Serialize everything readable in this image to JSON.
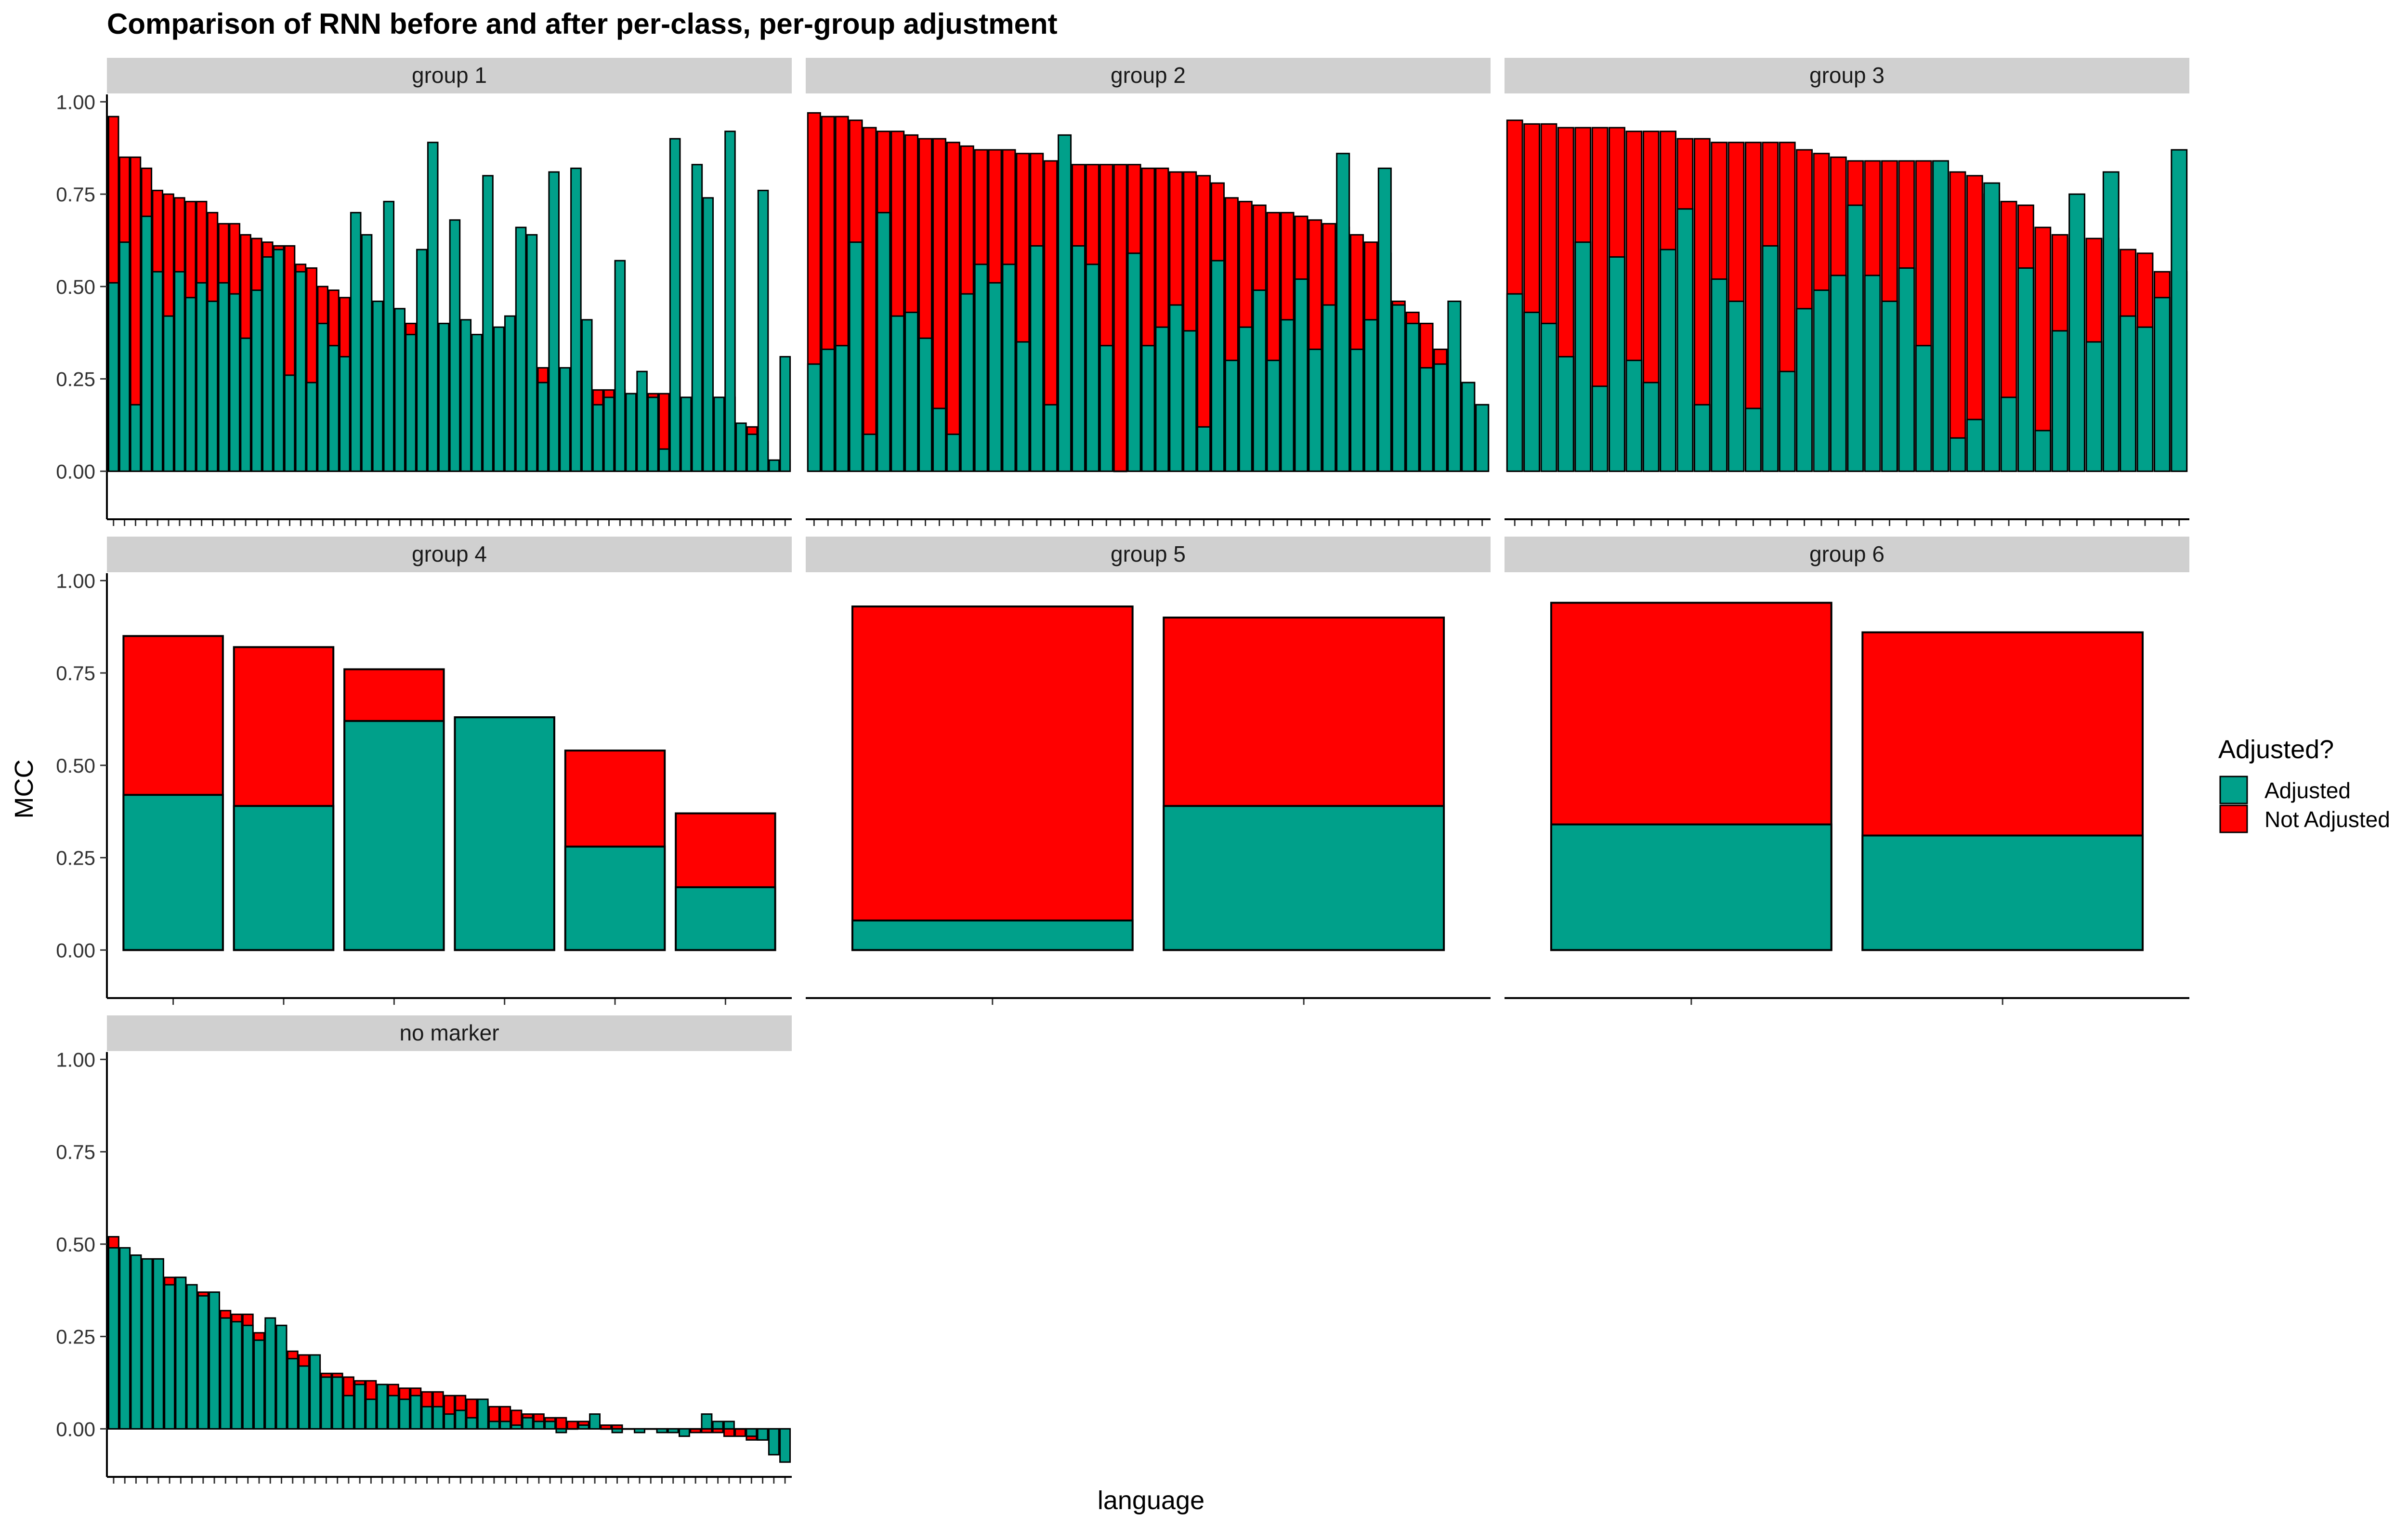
{
  "chart_data": {
    "type": "bar",
    "title": "Comparison of RNN before and after per-class, per-group adjustment",
    "xlabel": "language",
    "ylabel": "MCC",
    "ylim": [
      -0.13,
      1.02
    ],
    "yticks": [
      0,
      0.25,
      0.5,
      0.75,
      1
    ],
    "ytick_labels": [
      "0.00",
      "0.25",
      "0.50",
      "0.75",
      "1.00"
    ],
    "grid": false,
    "legend": {
      "title": "Adjusted?",
      "position": "right",
      "entries": [
        {
          "label": "Adjusted",
          "color": "#00A08A"
        },
        {
          "label": "Not Adjusted",
          "color": "#FF0000"
        }
      ]
    },
    "series_colors": {
      "adjusted": "#00A08A",
      "not_adjusted": "#FF0000"
    },
    "panels": [
      {
        "name": "group 1",
        "adjusted": [
          0.51,
          0.62,
          0.18,
          0.69,
          0.54,
          0.42,
          0.54,
          0.47,
          0.51,
          0.46,
          0.51,
          0.48,
          0.36,
          0.49,
          0.58,
          0.6,
          0.26,
          0.54,
          0.24,
          0.4,
          0.34,
          0.31,
          0.7,
          0.64,
          0.46,
          0.73,
          0.44,
          0.37,
          0.6,
          0.89,
          0.4,
          0.68,
          0.41,
          0.37,
          0.8,
          0.39,
          0.42,
          0.66,
          0.64,
          0.24,
          0.81,
          0.28,
          0.82,
          0.41,
          0.18,
          0.2,
          0.57,
          0.21,
          0.27,
          0.2,
          0.06,
          0.9,
          0.2,
          0.83,
          0.74,
          0.2,
          0.92,
          0.13,
          0.1,
          0.76,
          0.03,
          0.31
        ],
        "not_adjusted": [
          0.96,
          0.85,
          0.85,
          0.82,
          0.76,
          0.75,
          0.74,
          0.73,
          0.73,
          0.7,
          0.67,
          0.67,
          0.64,
          0.63,
          0.62,
          0.61,
          0.61,
          0.56,
          0.55,
          0.5,
          0.49,
          0.47,
          0.46,
          0.45,
          0.45,
          0.44,
          0.44,
          0.4,
          0.37,
          0.35,
          0.34,
          0.33,
          0.31,
          0.3,
          0.29,
          0.29,
          0.28,
          0.28,
          0.27,
          0.28,
          0.27,
          0.25,
          0.24,
          0.23,
          0.22,
          0.22,
          0.22,
          0.21,
          0.21,
          0.21,
          0.21,
          0.21,
          0.2,
          0.2,
          0.2,
          0.2,
          0.2,
          0.12,
          0.12,
          0.08,
          0.03,
          0.03
        ]
      },
      {
        "name": "group 2",
        "adjusted": [
          0.29,
          0.33,
          0.34,
          0.62,
          0.1,
          0.7,
          0.42,
          0.43,
          0.36,
          0.17,
          0.1,
          0.48,
          0.56,
          0.51,
          0.56,
          0.35,
          0.61,
          0.18,
          0.91,
          0.61,
          0.56,
          0.34,
          0.0,
          0.59,
          0.34,
          0.39,
          0.45,
          0.38,
          0.12,
          0.57,
          0.3,
          0.39,
          0.49,
          0.3,
          0.41,
          0.52,
          0.33,
          0.45,
          0.86,
          0.33,
          0.41,
          0.82,
          0.45,
          0.4,
          0.28,
          0.29,
          0.46,
          0.24,
          0.18
        ],
        "not_adjusted": [
          0.97,
          0.96,
          0.96,
          0.95,
          0.93,
          0.92,
          0.92,
          0.91,
          0.9,
          0.9,
          0.89,
          0.88,
          0.87,
          0.87,
          0.87,
          0.86,
          0.86,
          0.84,
          0.84,
          0.83,
          0.83,
          0.83,
          0.83,
          0.83,
          0.82,
          0.82,
          0.81,
          0.81,
          0.8,
          0.78,
          0.74,
          0.73,
          0.72,
          0.7,
          0.7,
          0.69,
          0.68,
          0.67,
          0.66,
          0.64,
          0.62,
          0.59,
          0.46,
          0.43,
          0.4,
          0.33,
          0.3,
          0.24,
          0.18
        ]
      },
      {
        "name": "group 3",
        "adjusted": [
          0.48,
          0.43,
          0.4,
          0.31,
          0.62,
          0.23,
          0.58,
          0.3,
          0.24,
          0.6,
          0.71,
          0.18,
          0.52,
          0.46,
          0.17,
          0.61,
          0.27,
          0.44,
          0.49,
          0.53,
          0.72,
          0.53,
          0.46,
          0.55,
          0.34,
          0.84,
          0.09,
          0.14,
          0.78,
          0.2,
          0.55,
          0.11,
          0.38,
          0.75,
          0.35,
          0.81,
          0.42,
          0.39,
          0.47,
          0.87
        ],
        "not_adjusted": [
          0.95,
          0.94,
          0.94,
          0.93,
          0.93,
          0.93,
          0.93,
          0.92,
          0.92,
          0.92,
          0.9,
          0.9,
          0.89,
          0.89,
          0.89,
          0.89,
          0.89,
          0.87,
          0.86,
          0.85,
          0.84,
          0.84,
          0.84,
          0.84,
          0.84,
          0.84,
          0.81,
          0.8,
          0.75,
          0.73,
          0.72,
          0.66,
          0.64,
          0.63,
          0.63,
          0.63,
          0.6,
          0.59,
          0.54,
          0.54
        ]
      },
      {
        "name": "group 4",
        "adjusted": [
          0.42,
          0.39,
          0.62,
          0.63,
          0.28,
          0.17
        ],
        "not_adjusted": [
          0.85,
          0.82,
          0.76,
          0.63,
          0.54,
          0.37
        ]
      },
      {
        "name": "group 5",
        "adjusted": [
          0.08,
          0.39
        ],
        "not_adjusted": [
          0.93,
          0.9
        ]
      },
      {
        "name": "group 6",
        "adjusted": [
          0.34,
          0.31
        ],
        "not_adjusted": [
          0.94,
          0.86
        ]
      },
      {
        "name": "no marker",
        "adjusted": [
          0.49,
          0.49,
          0.47,
          0.46,
          0.46,
          0.39,
          0.41,
          0.39,
          0.36,
          0.37,
          0.3,
          0.29,
          0.28,
          0.24,
          0.3,
          0.28,
          0.19,
          0.17,
          0.2,
          0.14,
          0.14,
          0.09,
          0.12,
          0.08,
          0.12,
          0.09,
          0.08,
          0.09,
          0.06,
          0.06,
          0.04,
          0.05,
          0.03,
          0.08,
          0.02,
          0.02,
          0.01,
          0.03,
          0.02,
          0.02,
          -0.01,
          0.0,
          0.01,
          0.04,
          0.0,
          -0.01,
          0.0,
          -0.01,
          0.0,
          -0.01,
          -0.01,
          -0.02,
          0.0,
          0.04,
          0.02,
          0.02,
          0.0,
          -0.02,
          -0.03,
          -0.07,
          -0.09
        ],
        "not_adjusted": [
          0.52,
          0.49,
          0.47,
          0.46,
          0.46,
          0.41,
          0.41,
          0.38,
          0.37,
          0.37,
          0.32,
          0.31,
          0.31,
          0.26,
          0.28,
          0.27,
          0.21,
          0.2,
          0.16,
          0.15,
          0.15,
          0.14,
          0.13,
          0.13,
          0.12,
          0.12,
          0.11,
          0.11,
          0.1,
          0.1,
          0.09,
          0.09,
          0.08,
          0.07,
          0.06,
          0.06,
          0.05,
          0.04,
          0.04,
          0.03,
          0.03,
          0.02,
          0.02,
          0.02,
          0.01,
          0.01,
          0.0,
          0.0,
          0.0,
          0.0,
          -0.01,
          -0.01,
          -0.01,
          -0.01,
          -0.01,
          -0.02,
          -0.02,
          -0.03,
          -0.03,
          -0.04,
          -0.04
        ]
      }
    ]
  }
}
